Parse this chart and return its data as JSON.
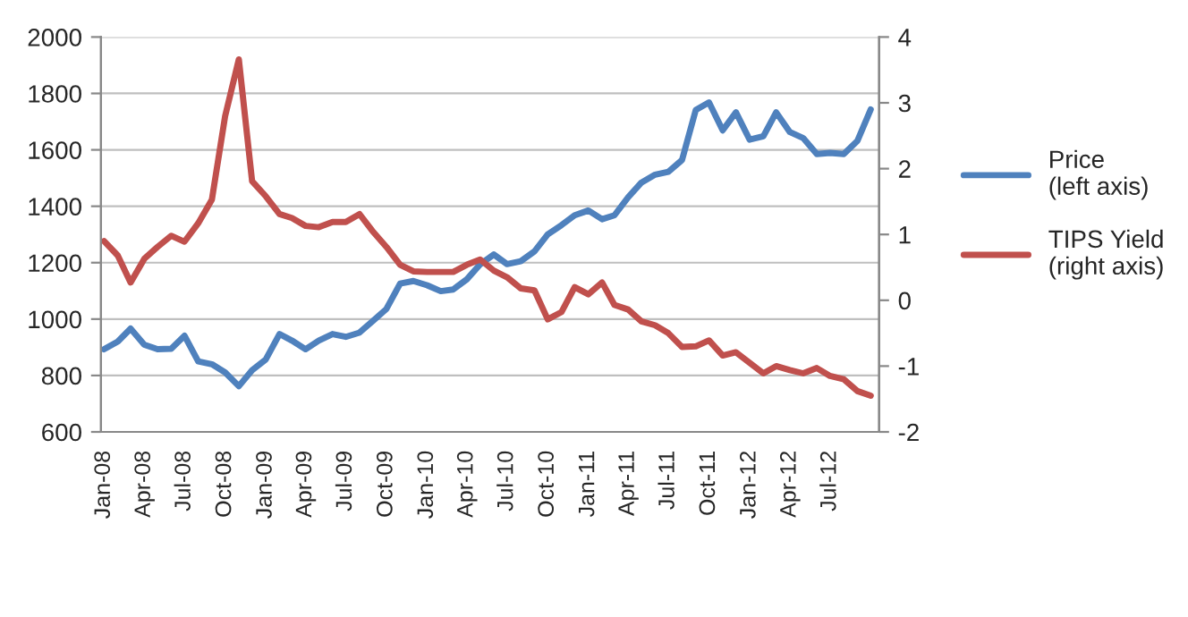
{
  "chart_data": {
    "type": "line",
    "x": [
      "2008-01",
      "2008-02",
      "2008-03",
      "2008-04",
      "2008-05",
      "2008-06",
      "2008-07",
      "2008-08",
      "2008-09",
      "2008-10",
      "2008-11",
      "2008-12",
      "2009-01",
      "2009-02",
      "2009-03",
      "2009-04",
      "2009-05",
      "2009-06",
      "2009-07",
      "2009-08",
      "2009-09",
      "2009-10",
      "2009-11",
      "2009-12",
      "2010-01",
      "2010-02",
      "2010-03",
      "2010-04",
      "2010-05",
      "2010-06",
      "2010-07",
      "2010-08",
      "2010-09",
      "2010-10",
      "2010-11",
      "2010-12",
      "2011-01",
      "2011-02",
      "2011-03",
      "2011-04",
      "2011-05",
      "2011-06",
      "2011-07",
      "2011-08",
      "2011-09",
      "2011-10",
      "2011-11",
      "2011-12",
      "2012-01",
      "2012-02",
      "2012-03",
      "2012-04",
      "2012-05",
      "2012-06",
      "2012-07",
      "2012-08",
      "2012-09",
      "2012-10"
    ],
    "series": [
      {
        "name": "Price\n(left axis)",
        "color": "#4f81bd",
        "values": [
          893,
          920,
          966,
          909,
          893,
          895,
          941,
          850,
          840,
          811,
          762,
          819,
          857,
          947,
          924,
          893,
          924,
          947,
          937,
          952,
          994,
          1036,
          1126,
          1135,
          1120,
          1099,
          1105,
          1141,
          1194,
          1229,
          1195,
          1205,
          1240,
          1300,
          1333,
          1368,
          1385,
          1354,
          1368,
          1432,
          1484,
          1512,
          1522,
          1564,
          1741,
          1768,
          1669,
          1733,
          1636,
          1648,
          1733,
          1663,
          1642,
          1585,
          1589,
          1585,
          1632,
          1743
        ]
      },
      {
        "name": "TIPS Yield\n(right axis)",
        "color": "#c0504d",
        "axis": "y2",
        "values": [
          0.9,
          0.68,
          0.27,
          0.63,
          0.81,
          0.98,
          0.89,
          1.17,
          1.53,
          2.8,
          3.66,
          1.81,
          1.58,
          1.31,
          1.25,
          1.13,
          1.11,
          1.19,
          1.19,
          1.31,
          1.04,
          0.81,
          0.54,
          0.44,
          0.43,
          0.43,
          0.43,
          0.54,
          0.62,
          0.45,
          0.35,
          0.18,
          0.15,
          -0.29,
          -0.18,
          0.2,
          0.09,
          0.27,
          -0.07,
          -0.14,
          -0.32,
          -0.38,
          -0.5,
          -0.71,
          -0.7,
          -0.61,
          -0.84,
          -0.79,
          -0.95,
          -1.11,
          -1.0,
          -1.06,
          -1.11,
          -1.03,
          -1.15,
          -1.2,
          -1.38,
          -1.45
        ]
      }
    ],
    "xlim": [
      "2007-12-25",
      "2012-10-20"
    ],
    "xticks": [
      {
        "value": "2008-01",
        "label": "Jan-08"
      },
      {
        "value": "2008-04",
        "label": "Apr-08"
      },
      {
        "value": "2008-07",
        "label": "Jul-08"
      },
      {
        "value": "2008-10",
        "label": "Oct-08"
      },
      {
        "value": "2009-01",
        "label": "Jan-09"
      },
      {
        "value": "2009-04",
        "label": "Apr-09"
      },
      {
        "value": "2009-07",
        "label": "Jul-09"
      },
      {
        "value": "2009-10",
        "label": "Oct-09"
      },
      {
        "value": "2010-01",
        "label": "Jan-10"
      },
      {
        "value": "2010-04",
        "label": "Apr-10"
      },
      {
        "value": "2010-07",
        "label": "Jul-10"
      },
      {
        "value": "2010-10",
        "label": "Oct-10"
      },
      {
        "value": "2011-01",
        "label": "Jan-11"
      },
      {
        "value": "2011-04",
        "label": "Apr-11"
      },
      {
        "value": "2011-07",
        "label": "Jul-11"
      },
      {
        "value": "2011-10",
        "label": "Oct-11"
      },
      {
        "value": "2012-01",
        "label": "Jan-12"
      },
      {
        "value": "2012-04",
        "label": "Apr-12"
      },
      {
        "value": "2012-07",
        "label": "Jul-12"
      }
    ],
    "ylim": [
      600,
      2000
    ],
    "yticks": [
      600,
      800,
      1000,
      1200,
      1400,
      1600,
      1800,
      2000
    ],
    "y2lim": [
      -2,
      4
    ],
    "y2ticks": [
      -2,
      -1,
      0,
      1,
      2,
      3,
      4
    ],
    "grid": "y",
    "legend": "right",
    "marker": "none",
    "line_style": "solid"
  }
}
